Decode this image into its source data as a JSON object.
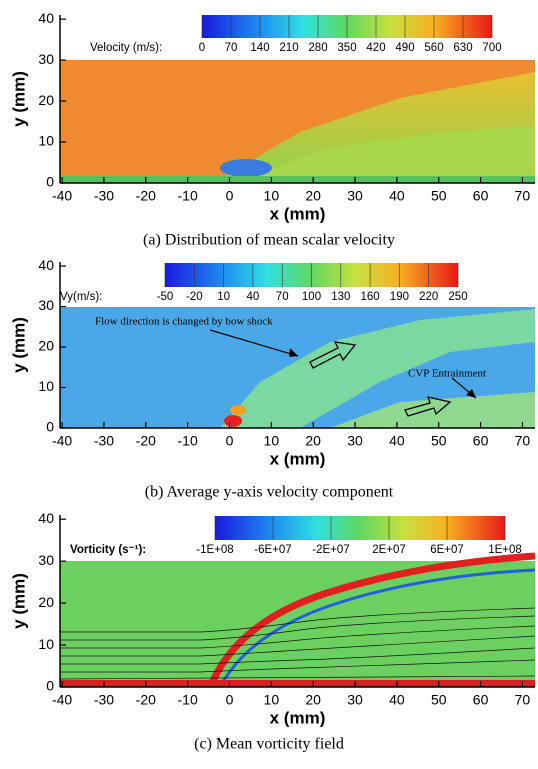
{
  "chart_data": [
    {
      "type": "contour",
      "title": "(a) Distribution of mean scalar velocity",
      "xlabel": "x (mm)",
      "ylabel": "y (mm)",
      "xlim": [
        -40.5,
        73
      ],
      "ylim": [
        0,
        41
      ],
      "xticks": [
        -40,
        -30,
        -20,
        -10,
        0,
        10,
        20,
        30,
        40,
        50,
        60,
        70
      ],
      "yticks": [
        0,
        10,
        20,
        30,
        40
      ],
      "colorbar_label": "Velocity (m/s):",
      "colorbar_ticks": [
        0,
        70,
        140,
        210,
        280,
        350,
        420,
        490,
        560,
        630,
        700
      ]
    },
    {
      "type": "contour",
      "title": "(b) Average y-axis velocity component",
      "xlabel": "x (mm)",
      "ylabel": "y (mm)",
      "xlim": [
        -40.5,
        73
      ],
      "ylim": [
        0,
        41
      ],
      "xticks": [
        -40,
        -30,
        -20,
        -10,
        0,
        10,
        20,
        30,
        40,
        50,
        60,
        70
      ],
      "yticks": [
        0,
        10,
        20,
        30,
        40
      ],
      "colorbar_label": "Vy(m/s):",
      "colorbar_ticks": [
        -50,
        -20,
        10,
        40,
        70,
        100,
        130,
        160,
        190,
        220,
        250
      ],
      "annotations": [
        "Flow direction is changed by bow shock",
        "CVP Entrainment"
      ]
    },
    {
      "type": "contour",
      "title": "(c) Mean vorticity field",
      "xlabel": "x (mm)",
      "ylabel": "y (mm)",
      "xlim": [
        -40.5,
        73
      ],
      "ylim": [
        0,
        41
      ],
      "xticks": [
        -40,
        -30,
        -20,
        -10,
        0,
        10,
        20,
        30,
        40,
        50,
        60,
        70
      ],
      "yticks": [
        0,
        10,
        20,
        30,
        40
      ],
      "colorbar_label": "Vorticity (s⁻¹):",
      "colorbar_ticks": [
        {
          "value": -100000000,
          "label": "-1E+08"
        },
        {
          "value": -60000000,
          "label": "-6E+07"
        },
        {
          "value": -20000000,
          "label": "-2E+07"
        },
        {
          "value": 20000000,
          "label": "2E+07"
        },
        {
          "value": 60000000,
          "label": "6E+07"
        },
        {
          "value": 100000000,
          "label": "1E+08"
        }
      ]
    }
  ]
}
